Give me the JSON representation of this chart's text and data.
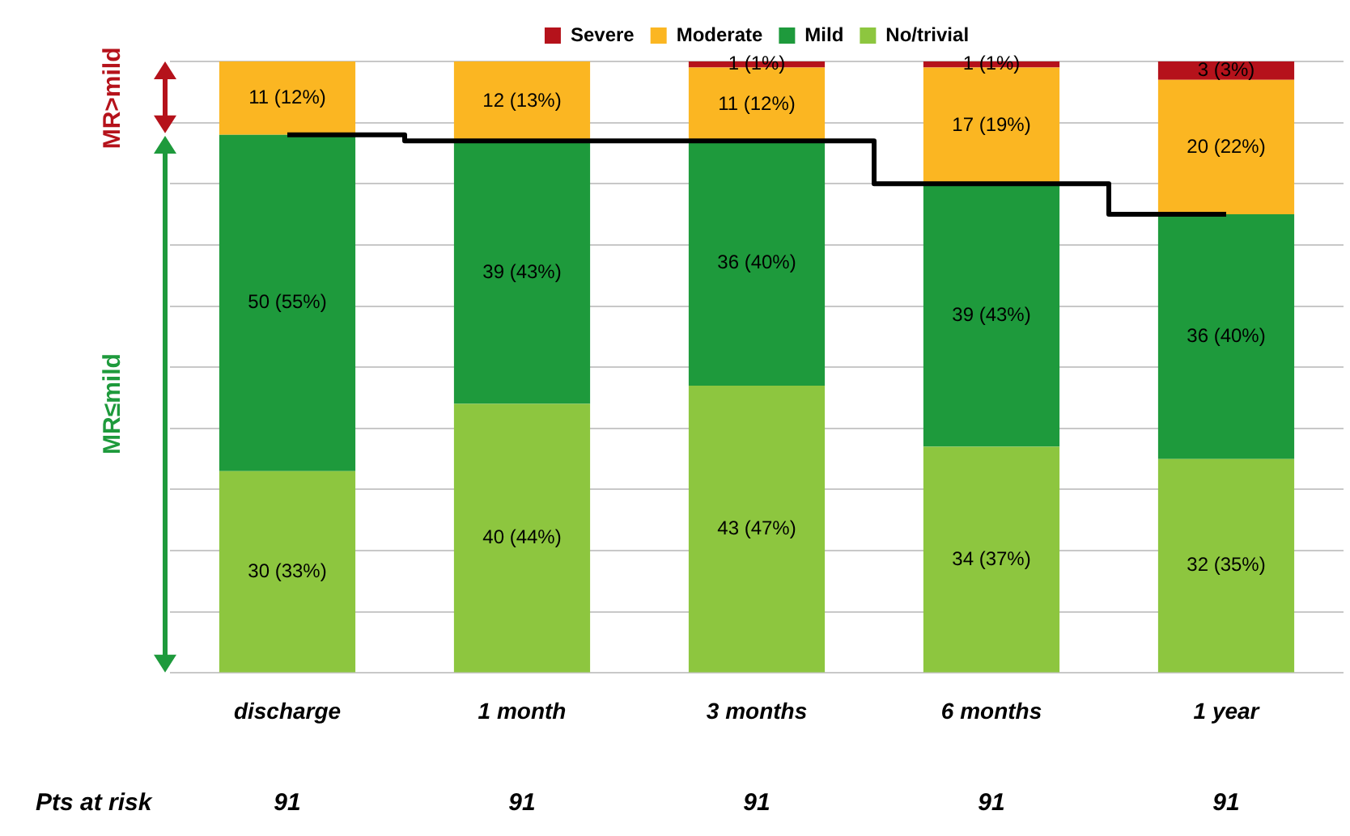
{
  "chart_data": {
    "type": "bar",
    "stacked": true,
    "legend": "top",
    "grid": "y",
    "tick_labels": "x",
    "categories": [
      "discharge",
      "1 month",
      "3 months",
      "6 months",
      "1 year"
    ],
    "ylim": [
      0,
      100
    ],
    "yticks": [
      {
        "value": 0,
        "label": null
      },
      {
        "value": 10,
        "label": null
      },
      {
        "value": 20,
        "label": null
      },
      {
        "value": 30,
        "label": null
      },
      {
        "value": 40,
        "label": null
      },
      {
        "value": 50,
        "label": null
      },
      {
        "value": 60,
        "label": null
      },
      {
        "value": 70,
        "label": null
      },
      {
        "value": 80,
        "label": null
      },
      {
        "value": 90,
        "label": null
      },
      {
        "value": 100,
        "label": null
      }
    ],
    "series": [
      {
        "name": "No/trivial",
        "color": "#8dc63f",
        "values": [
          33,
          44,
          47,
          37,
          35
        ],
        "value_labels": [
          "30 (33%)",
          "40 (44%)",
          "43 (47%)",
          "34 (37%)",
          "32 (35%)"
        ]
      },
      {
        "name": "Mild",
        "color": "#1e9a3c",
        "values": [
          55,
          43,
          40,
          43,
          40
        ],
        "value_labels": [
          "50 (55%)",
          "39 (43%)",
          "36 (40%)",
          "39 (43%)",
          "36 (40%)"
        ]
      },
      {
        "name": "Moderate",
        "color": "#fbb622",
        "values": [
          12,
          13,
          12,
          19,
          22
        ],
        "value_labels": [
          "11 (12%)",
          "12 (13%)",
          "11 (12%)",
          "17 (19%)",
          "20 (22%)"
        ]
      },
      {
        "name": "Severe",
        "color": "#b5121b",
        "values": [
          0,
          0,
          1,
          1,
          3
        ],
        "value_labels": [
          null,
          null,
          "1 (1%)",
          "1 (1%)",
          "3 (3%)"
        ]
      },
      {
        "type": "step",
        "color": "#000000",
        "values": [
          88,
          87,
          87,
          80,
          75
        ]
      }
    ],
    "annotations": [
      "MR>mild",
      "MR≤mild",
      "Pts at risk",
      "91",
      "91",
      "91",
      "91",
      "91"
    ]
  }
}
